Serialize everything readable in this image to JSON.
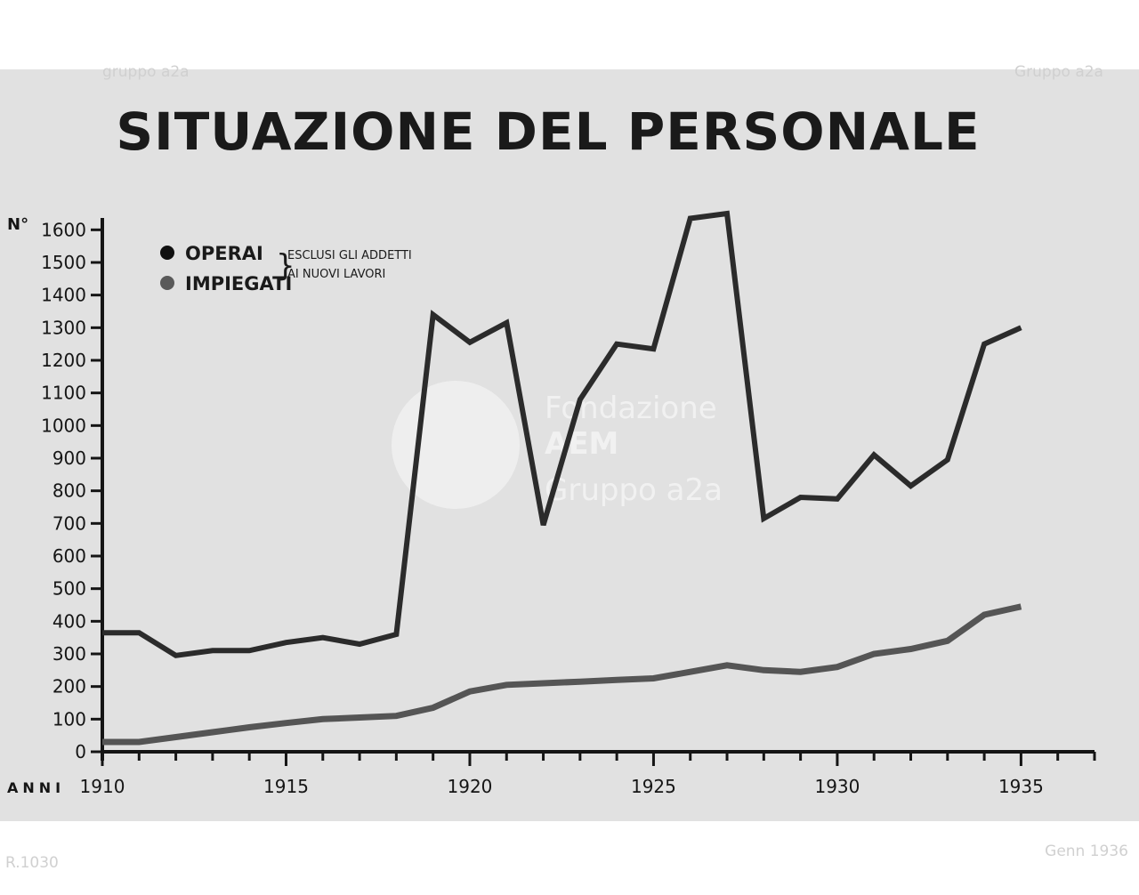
{
  "chart_data": {
    "type": "line",
    "title": "SITUAZIONE DEL PERSONALE",
    "ylabel": "N°",
    "xlabel": "ANNI",
    "ylim": [
      0,
      1650
    ],
    "xlim": [
      1910,
      1937
    ],
    "yticks": [
      0,
      100,
      200,
      300,
      400,
      500,
      600,
      700,
      800,
      900,
      1000,
      1100,
      1200,
      1300,
      1400,
      1500,
      1600
    ],
    "xticks": [
      1910,
      1915,
      1920,
      1925,
      1930,
      1935
    ],
    "grid": false,
    "legend_note": [
      "ESCLUSI GLI ADDETTI",
      "AI NUOVI LAVORI"
    ],
    "series": [
      {
        "name": "OPERAI",
        "color": "#2b2b2b",
        "x": [
          1910,
          1911,
          1912,
          1913,
          1914,
          1915,
          1916,
          1917,
          1918,
          1919,
          1920,
          1921,
          1922,
          1923,
          1924,
          1925,
          1926,
          1927,
          1928,
          1929,
          1930,
          1931,
          1932,
          1933,
          1934,
          1935
        ],
        "y": [
          365,
          365,
          295,
          310,
          310,
          335,
          350,
          330,
          360,
          1340,
          1255,
          1315,
          695,
          1080,
          1250,
          1235,
          1635,
          1650,
          715,
          780,
          775,
          910,
          815,
          895,
          1250,
          1300
        ]
      },
      {
        "name": "IMPIEGATI",
        "color": "#555555",
        "x": [
          1910,
          1911,
          1912,
          1913,
          1914,
          1915,
          1916,
          1917,
          1918,
          1919,
          1920,
          1921,
          1922,
          1923,
          1924,
          1925,
          1926,
          1927,
          1928,
          1929,
          1930,
          1931,
          1932,
          1933,
          1934,
          1935
        ],
        "y": [
          30,
          30,
          45,
          60,
          75,
          88,
          100,
          105,
          110,
          135,
          185,
          205,
          210,
          215,
          220,
          225,
          245,
          265,
          250,
          245,
          260,
          300,
          315,
          340,
          420,
          445
        ]
      }
    ]
  },
  "archive": {
    "watermark_lines": [
      "Fondazione",
      "AEM",
      "Gruppo a2a"
    ],
    "corner_marks": [
      "gruppo a2a",
      "Gruppo a2a"
    ],
    "bottom_left_note": "R.1030",
    "bottom_right_note": "Genn 1936"
  },
  "colors": {
    "paper": "#e1e1e1",
    "ink": "#1a1a1a",
    "background": "#ffffff"
  }
}
